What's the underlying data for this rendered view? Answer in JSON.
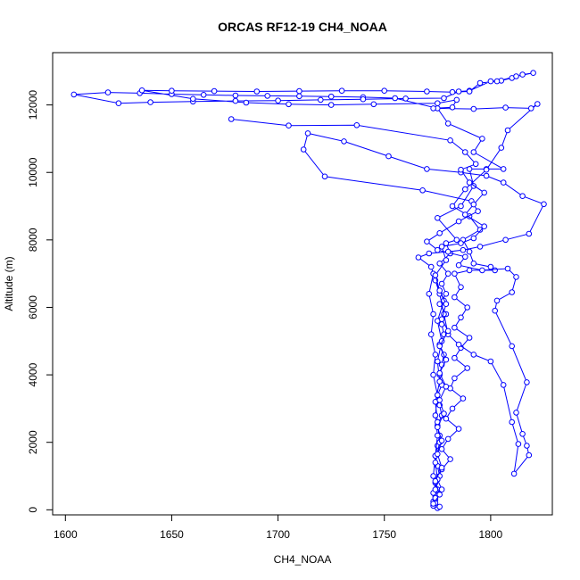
{
  "chart_data": {
    "type": "line",
    "title": "ORCAS RF12-19 CH4_NOAA",
    "xlabel": "CH4_NOAA",
    "ylabel": "Altitude (m)",
    "xlim": [
      1594,
      1829
    ],
    "ylim": [
      -150,
      13550
    ],
    "xticks": [
      1600,
      1650,
      1700,
      1750,
      1800
    ],
    "yticks": [
      0,
      2000,
      4000,
      6000,
      8000,
      10000,
      12000
    ],
    "grid": false,
    "legend": "none",
    "colors": {
      "series": "#0000ff",
      "frame": "#000000"
    },
    "series": [
      {
        "marker": "open-circle",
        "points": [
          [
            1775,
            50
          ],
          [
            1774,
            150
          ],
          [
            1773,
            250
          ],
          [
            1774,
            400
          ],
          [
            1775,
            600
          ],
          [
            1774,
            800
          ],
          [
            1776,
            1000
          ],
          [
            1775,
            1300
          ],
          [
            1774,
            1600
          ],
          [
            1775,
            1900
          ],
          [
            1776,
            2200
          ],
          [
            1775,
            2500
          ],
          [
            1777,
            2800
          ],
          [
            1776,
            3100
          ],
          [
            1775,
            3400
          ],
          [
            1777,
            3700
          ],
          [
            1776,
            4000
          ],
          [
            1777,
            4300
          ],
          [
            1778,
            4600
          ],
          [
            1776,
            4900
          ],
          [
            1778,
            5200
          ],
          [
            1777,
            5500
          ],
          [
            1779,
            5800
          ],
          [
            1776,
            6100
          ],
          [
            1779,
            6400
          ],
          [
            1777,
            6700
          ],
          [
            1780,
            7000
          ],
          [
            1776,
            7300
          ],
          [
            1781,
            7600
          ],
          [
            1779,
            7900
          ],
          [
            1784,
            8000
          ],
          [
            1775,
            8650
          ],
          [
            1786,
            9000
          ],
          [
            1792,
            9600
          ],
          [
            1790,
            10100
          ],
          [
            1798,
            10100
          ],
          [
            1806,
            10100
          ],
          [
            1792,
            10600
          ],
          [
            1796,
            11000
          ],
          [
            1780,
            11450
          ],
          [
            1775,
            11900
          ],
          [
            1755,
            12200
          ],
          [
            1740,
            12230
          ],
          [
            1725,
            12250
          ],
          [
            1710,
            12260
          ],
          [
            1695,
            12270
          ],
          [
            1680,
            12280
          ],
          [
            1665,
            12300
          ],
          [
            1650,
            12320
          ],
          [
            1635,
            12350
          ],
          [
            1620,
            12370
          ],
          [
            1604,
            12310
          ],
          [
            1625,
            12050
          ],
          [
            1640,
            12080
          ],
          [
            1660,
            12100
          ],
          [
            1680,
            12120
          ],
          [
            1700,
            12130
          ],
          [
            1720,
            12150
          ],
          [
            1740,
            12170
          ],
          [
            1760,
            12190
          ],
          [
            1778,
            12200
          ],
          [
            1785,
            12400
          ],
          [
            1790,
            12420
          ],
          [
            1800,
            12700
          ],
          [
            1805,
            12720
          ],
          [
            1810,
            12800
          ],
          [
            1815,
            12900
          ],
          [
            1820,
            12950
          ],
          [
            1812,
            12850
          ],
          [
            1803,
            12700
          ],
          [
            1795,
            12650
          ],
          [
            1790,
            12400
          ],
          [
            1782,
            12380
          ],
          [
            1770,
            12400
          ],
          [
            1750,
            12420
          ],
          [
            1730,
            12420
          ],
          [
            1710,
            12410
          ],
          [
            1690,
            12400
          ],
          [
            1670,
            12410
          ],
          [
            1650,
            12420
          ],
          [
            1636,
            12430
          ],
          [
            1660,
            12180
          ],
          [
            1685,
            12070
          ],
          [
            1705,
            12020
          ],
          [
            1725,
            12000
          ],
          [
            1745,
            12020
          ],
          [
            1775,
            12050
          ],
          [
            1784,
            12150
          ],
          [
            1782,
            11930
          ],
          [
            1773,
            11900
          ],
          [
            1792,
            11880
          ],
          [
            1807,
            11920
          ],
          [
            1819,
            11900
          ],
          [
            1822,
            12030
          ],
          [
            1808,
            11250
          ],
          [
            1805,
            10730
          ],
          [
            1798,
            10080
          ],
          [
            1788,
            9500
          ],
          [
            1782,
            9000
          ],
          [
            1790,
            8700
          ],
          [
            1795,
            8300
          ],
          [
            1787,
            8000
          ],
          [
            1790,
            7650
          ],
          [
            1792,
            7300
          ],
          [
            1800,
            7200
          ],
          [
            1802,
            7100
          ],
          [
            1790,
            7100
          ],
          [
            1783,
            7000
          ],
          [
            1786,
            6600
          ],
          [
            1783,
            6300
          ],
          [
            1789,
            6000
          ],
          [
            1786,
            5700
          ],
          [
            1783,
            5400
          ],
          [
            1790,
            5100
          ],
          [
            1786,
            4800
          ],
          [
            1783,
            4500
          ],
          [
            1789,
            4200
          ],
          [
            1783,
            3900
          ],
          [
            1781,
            3600
          ],
          [
            1787,
            3300
          ],
          [
            1782,
            3000
          ],
          [
            1779,
            2700
          ],
          [
            1785,
            2400
          ],
          [
            1780,
            2100
          ],
          [
            1777,
            1800
          ],
          [
            1781,
            1500
          ],
          [
            1777,
            1200
          ],
          [
            1775,
            900
          ],
          [
            1777,
            600
          ],
          [
            1774,
            300
          ],
          [
            1773,
            120
          ],
          [
            1776,
            90
          ]
        ]
      },
      {
        "marker": "open-circle",
        "points": [
          [
            1774,
            200
          ],
          [
            1773,
            500
          ],
          [
            1775,
            900
          ],
          [
            1774,
            1400
          ],
          [
            1776,
            2000
          ],
          [
            1775,
            2600
          ],
          [
            1774,
            3200
          ],
          [
            1776,
            3800
          ],
          [
            1775,
            4400
          ],
          [
            1777,
            5000
          ],
          [
            1775,
            5600
          ],
          [
            1778,
            6200
          ],
          [
            1774,
            6800
          ],
          [
            1772,
            7200
          ],
          [
            1766,
            7480
          ],
          [
            1771,
            7600
          ],
          [
            1780,
            7650
          ],
          [
            1787,
            7700
          ],
          [
            1795,
            7800
          ],
          [
            1807,
            8000
          ],
          [
            1818,
            8180
          ],
          [
            1825,
            9060
          ],
          [
            1815,
            9300
          ],
          [
            1806,
            9700
          ],
          [
            1798,
            9900
          ],
          [
            1786,
            10000
          ],
          [
            1770,
            10100
          ],
          [
            1752,
            10480
          ],
          [
            1731,
            10920
          ],
          [
            1714,
            11160
          ],
          [
            1712,
            10680
          ],
          [
            1722,
            9880
          ],
          [
            1768,
            9470
          ],
          [
            1791,
            9150
          ],
          [
            1794,
            8850
          ],
          [
            1785,
            8550
          ],
          [
            1776,
            8200
          ],
          [
            1770,
            7950
          ],
          [
            1775,
            7700
          ],
          [
            1788,
            7500
          ],
          [
            1785,
            7250
          ],
          [
            1796,
            7100
          ],
          [
            1808,
            7150
          ],
          [
            1812,
            6900
          ],
          [
            1810,
            6450
          ],
          [
            1803,
            6200
          ],
          [
            1802,
            5900
          ],
          [
            1810,
            4850
          ],
          [
            1817,
            3780
          ],
          [
            1812,
            2880
          ],
          [
            1815,
            2250
          ],
          [
            1817,
            1900
          ],
          [
            1818,
            1620
          ],
          [
            1811,
            1070
          ],
          [
            1813,
            1950
          ],
          [
            1810,
            2600
          ],
          [
            1806,
            3700
          ],
          [
            1800,
            4400
          ],
          [
            1792,
            4600
          ],
          [
            1785,
            4900
          ],
          [
            1780,
            5200
          ],
          [
            1778,
            5800
          ],
          [
            1776,
            6400
          ],
          [
            1773,
            7000
          ],
          [
            1771,
            6400
          ],
          [
            1773,
            5800
          ],
          [
            1772,
            5200
          ],
          [
            1774,
            4600
          ],
          [
            1773,
            4000
          ],
          [
            1775,
            3400
          ],
          [
            1774,
            2800
          ],
          [
            1775,
            2200
          ],
          [
            1774,
            1600
          ],
          [
            1773,
            1000
          ],
          [
            1774,
            600
          ],
          [
            1774,
            350
          ]
        ]
      },
      {
        "marker": "open-circle",
        "points": [
          [
            1678,
            11580
          ],
          [
            1705,
            11390
          ],
          [
            1737,
            11400
          ],
          [
            1781,
            10950
          ],
          [
            1788,
            10600
          ],
          [
            1793,
            10250
          ],
          [
            1786,
            10080
          ],
          [
            1790,
            9700
          ],
          [
            1797,
            9400
          ],
          [
            1792,
            9050
          ],
          [
            1788,
            8750
          ],
          [
            1797,
            8400
          ],
          [
            1792,
            8050
          ],
          [
            1786,
            7900
          ],
          [
            1777,
            7800
          ],
          [
            1779,
            7400
          ],
          [
            1774,
            6950
          ],
          [
            1776,
            6500
          ],
          [
            1779,
            6100
          ],
          [
            1777,
            5650
          ],
          [
            1780,
            5300
          ],
          [
            1776,
            4850
          ],
          [
            1779,
            4450
          ],
          [
            1776,
            4050
          ],
          [
            1779,
            3650
          ],
          [
            1776,
            3250
          ],
          [
            1778,
            2850
          ],
          [
            1775,
            2450
          ],
          [
            1777,
            2050
          ],
          [
            1775,
            1650
          ],
          [
            1777,
            1250
          ],
          [
            1774,
            850
          ],
          [
            1776,
            450
          ],
          [
            1773,
            180
          ]
        ]
      }
    ]
  }
}
